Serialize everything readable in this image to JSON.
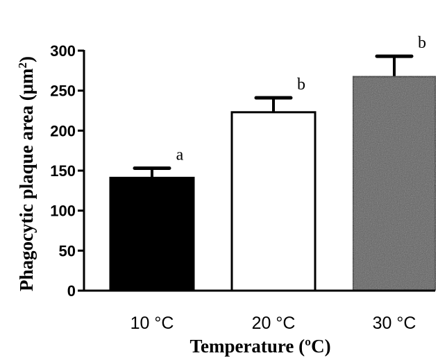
{
  "chart_data": {
    "type": "bar",
    "categories": [
      "10 °C",
      "20 °C",
      "30 °C"
    ],
    "values": [
      141,
      223,
      268
    ],
    "errors": [
      12,
      18,
      25
    ],
    "significance_labels": [
      "a",
      "b",
      "b"
    ],
    "bar_fills": [
      "#000000",
      "#ffffff",
      "#5f5f5f"
    ],
    "xlabel": "Temperature (ºC)",
    "ylabel_main": "Phagocytic plaque area (μm",
    "ylabel_sup": "2",
    "ylabel_close": ")",
    "ylim": [
      0,
      300
    ],
    "yticks": [
      "0",
      "50",
      "100",
      "150",
      "200",
      "250",
      "300"
    ],
    "grid": false,
    "legend": "none"
  }
}
